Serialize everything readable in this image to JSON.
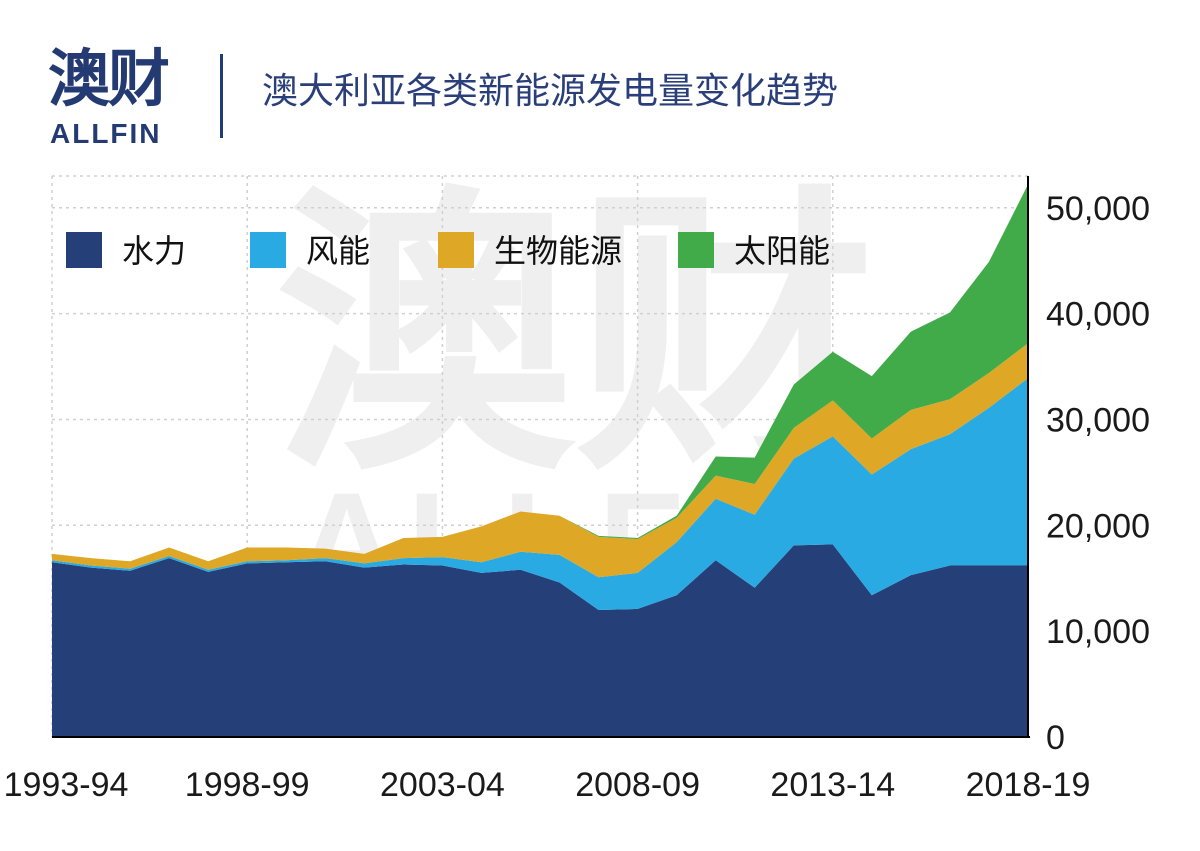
{
  "header": {
    "logo_cn": "澳财",
    "logo_en": "ALLFIN",
    "title": "澳大利亚各类新能源发电量变化趋势"
  },
  "watermark": {
    "cn": "澳财",
    "en": "ALLFIN"
  },
  "chart_data": {
    "type": "area",
    "stacked": true,
    "title": "澳大利亚各类新能源发电量变化趋势",
    "xlabel": "",
    "ylabel": "",
    "ylim": [
      0,
      53000
    ],
    "y_ticks": [
      0,
      10000,
      20000,
      30000,
      40000,
      50000
    ],
    "y_tick_labels": [
      "0",
      "10,000",
      "20,000",
      "30,000",
      "40,000",
      "50,000"
    ],
    "y_axis_position": "right",
    "x_tick_labels": [
      "1993-94",
      "1998-99",
      "2003-04",
      "2008-09",
      "2013-14",
      "2018-19"
    ],
    "x": [
      "1993-94",
      "1994-95",
      "1995-96",
      "1996-97",
      "1997-98",
      "1998-99",
      "1999-00",
      "2000-01",
      "2001-02",
      "2002-03",
      "2003-04",
      "2004-05",
      "2005-06",
      "2006-07",
      "2007-08",
      "2008-09",
      "2009-10",
      "2010-11",
      "2011-12",
      "2012-13",
      "2013-14",
      "2014-15",
      "2015-16",
      "2016-17",
      "2017-18",
      "2018-19"
    ],
    "grid": true,
    "legend_position": "top-left",
    "series": [
      {
        "name": "水力",
        "color": "#253f78",
        "values": [
          16500,
          16000,
          15700,
          16900,
          15600,
          16400,
          16500,
          16600,
          16000,
          16300,
          16200,
          15500,
          15800,
          14600,
          12000,
          12100,
          13400,
          16700,
          14100,
          18100,
          18200,
          13400,
          15300,
          16200,
          16200,
          16200
        ]
      },
      {
        "name": "风能",
        "color": "#2aaae2",
        "values": [
          200,
          200,
          200,
          200,
          200,
          200,
          200,
          300,
          400,
          600,
          800,
          1000,
          1700,
          2600,
          3100,
          3400,
          5000,
          5800,
          6900,
          8200,
          10200,
          11400,
          11900,
          12400,
          14900,
          17700
        ]
      },
      {
        "name": "生物能源",
        "color": "#dea726",
        "values": [
          600,
          700,
          700,
          800,
          800,
          1300,
          1200,
          900,
          900,
          1900,
          1900,
          3400,
          3800,
          3700,
          3800,
          3200,
          2300,
          2200,
          2900,
          2900,
          3400,
          3400,
          3700,
          3300,
          3300,
          3300
        ]
      },
      {
        "name": "太阳能",
        "color": "#41ab4a",
        "values": [
          0,
          0,
          0,
          0,
          0,
          0,
          0,
          0,
          0,
          0,
          0,
          0,
          0,
          0,
          100,
          100,
          200,
          1800,
          2500,
          4100,
          4600,
          5900,
          7400,
          8200,
          10500,
          15000
        ]
      }
    ]
  }
}
